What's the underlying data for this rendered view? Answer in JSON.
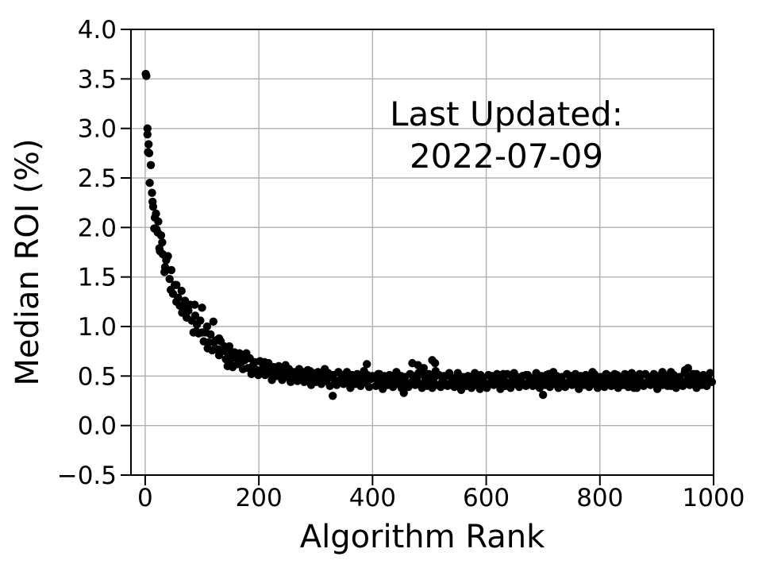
{
  "chart_data": {
    "type": "scatter",
    "title": "",
    "xlabel": "Algorithm Rank",
    "ylabel": "Median ROI (%)",
    "annotation": {
      "line1": "Last Updated:",
      "line2": "2022-07-09"
    },
    "xlim": [
      -25,
      1000
    ],
    "ylim": [
      -0.5,
      4.0
    ],
    "xticks": [
      0,
      200,
      400,
      600,
      800,
      1000
    ],
    "xtick_labels": [
      "0",
      "200",
      "400",
      "600",
      "800",
      "1000"
    ],
    "yticks": [
      4.0,
      3.5,
      3.0,
      2.5,
      2.0,
      1.5,
      1.0,
      0.5,
      0.0,
      -0.5
    ],
    "ytick_labels": [
      "4.0",
      "3.5",
      "3.0",
      "2.5",
      "2.0",
      "1.5",
      "1.0",
      "0.5",
      "0.0",
      "−0.5"
    ],
    "grid": true,
    "grid_color": "#b0b0b0",
    "axis_color": "#000000",
    "marker_color": "#000000",
    "marker_radius_px": 5.2,
    "legend": "none",
    "points": [
      [
        1,
        3.55
      ],
      [
        4,
        2.94
      ],
      [
        7,
        2.75
      ],
      [
        10,
        2.63
      ],
      [
        13,
        2.26
      ],
      [
        16,
        1.99
      ],
      [
        19,
        2.14
      ],
      [
        22,
        1.95
      ],
      [
        25,
        1.79
      ],
      [
        28,
        1.92
      ],
      [
        31,
        1.73
      ],
      [
        34,
        1.55
      ],
      [
        37,
        1.67
      ],
      [
        40,
        1.71
      ],
      [
        43,
        1.48
      ],
      [
        46,
        1.57
      ],
      [
        49,
        1.33
      ],
      [
        52,
        1.42
      ],
      [
        55,
        1.42
      ],
      [
        58,
        1.29
      ],
      [
        61,
        1.21
      ],
      [
        64,
        1.36
      ],
      [
        67,
        1.21
      ],
      [
        70,
        1.26
      ],
      [
        73,
        1.09
      ],
      [
        76,
        1.16
      ],
      [
        79,
        1.22
      ],
      [
        82,
        1.06
      ],
      [
        85,
        0.94
      ],
      [
        88,
        1.11
      ],
      [
        91,
        1.02
      ],
      [
        94,
        0.93
      ],
      [
        97,
        1.06
      ],
      [
        100,
        0.94
      ],
      [
        103,
        0.85
      ],
      [
        106,
        0.94
      ],
      [
        109,
        1.0
      ],
      [
        112,
        0.84
      ],
      [
        115,
        0.92
      ],
      [
        118,
        0.76
      ],
      [
        121,
        0.84
      ],
      [
        124,
        0.86
      ],
      [
        127,
        0.77
      ],
      [
        130,
        0.71
      ],
      [
        133,
        0.85
      ],
      [
        136,
        0.75
      ],
      [
        139,
        0.8
      ],
      [
        142,
        0.67
      ],
      [
        145,
        0.74
      ],
      [
        148,
        0.8
      ],
      [
        151,
        0.68
      ],
      [
        154,
        0.59
      ],
      [
        157,
        0.74
      ],
      [
        160,
        0.68
      ],
      [
        163,
        0.62
      ],
      [
        166,
        0.73
      ],
      [
        169,
        0.64
      ],
      [
        172,
        0.57
      ],
      [
        175,
        0.66
      ],
      [
        178,
        0.73
      ],
      [
        181,
        0.58
      ],
      [
        184,
        0.68
      ],
      [
        187,
        0.52
      ],
      [
        190,
        0.61
      ],
      [
        193,
        0.64
      ],
      [
        196,
        0.56
      ],
      [
        199,
        0.51
      ],
      [
        202,
        0.65
      ],
      [
        205,
        0.56
      ],
      [
        208,
        0.61
      ],
      [
        211,
        0.51
      ],
      [
        214,
        0.57
      ],
      [
        217,
        0.63
      ],
      [
        220,
        0.53
      ],
      [
        223,
        0.46
      ],
      [
        226,
        0.59
      ],
      [
        229,
        0.54
      ],
      [
        232,
        0.5
      ],
      [
        235,
        0.6
      ],
      [
        238,
        0.52
      ],
      [
        241,
        0.46
      ],
      [
        244,
        0.55
      ],
      [
        247,
        0.61
      ],
      [
        250,
        0.49
      ],
      [
        253,
        0.57
      ],
      [
        256,
        0.44
      ],
      [
        259,
        0.52
      ],
      [
        262,
        0.54
      ],
      [
        265,
        0.48
      ],
      [
        268,
        0.45
      ],
      [
        271,
        0.57
      ],
      [
        274,
        0.49
      ],
      [
        277,
        0.54
      ],
      [
        280,
        0.44
      ],
      [
        283,
        0.51
      ],
      [
        286,
        0.56
      ],
      [
        289,
        0.47
      ],
      [
        292,
        0.41
      ],
      [
        295,
        0.53
      ],
      [
        298,
        0.49
      ],
      [
        301,
        0.44
      ],
      [
        304,
        0.54
      ],
      [
        307,
        0.47
      ],
      [
        310,
        0.42
      ],
      [
        313,
        0.5
      ],
      [
        316,
        0.57
      ],
      [
        319,
        0.45
      ],
      [
        322,
        0.53
      ],
      [
        325,
        0.4
      ],
      [
        328,
        0.49
      ],
      [
        331,
        0.51
      ],
      [
        334,
        0.45
      ],
      [
        337,
        0.41
      ],
      [
        340,
        0.54
      ],
      [
        343,
        0.46
      ],
      [
        346,
        0.51
      ],
      [
        349,
        0.42
      ],
      [
        352,
        0.48
      ],
      [
        355,
        0.54
      ],
      [
        358,
        0.45
      ],
      [
        361,
        0.38
      ],
      [
        364,
        0.51
      ],
      [
        367,
        0.47
      ],
      [
        370,
        0.42
      ],
      [
        373,
        0.52
      ],
      [
        376,
        0.46
      ],
      [
        379,
        0.4
      ],
      [
        382,
        0.49
      ],
      [
        385,
        0.55
      ],
      [
        388,
        0.43
      ],
      [
        391,
        0.51
      ],
      [
        394,
        0.39
      ],
      [
        397,
        0.47
      ],
      [
        400,
        0.5
      ],
      [
        403,
        0.49
      ],
      [
        406,
        0.4
      ],
      [
        409,
        0.46
      ],
      [
        412,
        0.52
      ],
      [
        415,
        0.43
      ],
      [
        418,
        0.37
      ],
      [
        421,
        0.5
      ],
      [
        424,
        0.45
      ],
      [
        427,
        0.41
      ],
      [
        430,
        0.51
      ],
      [
        433,
        0.44
      ],
      [
        436,
        0.39
      ],
      [
        439,
        0.47
      ],
      [
        442,
        0.54
      ],
      [
        445,
        0.42
      ],
      [
        448,
        0.5
      ],
      [
        451,
        0.38
      ],
      [
        454,
        0.46
      ],
      [
        457,
        0.49
      ],
      [
        460,
        0.43
      ],
      [
        463,
        0.39
      ],
      [
        466,
        0.52
      ],
      [
        469,
        0.44
      ],
      [
        472,
        0.5
      ],
      [
        475,
        0.41
      ],
      [
        478,
        0.47
      ],
      [
        481,
        0.53
      ],
      [
        484,
        0.42
      ],
      [
        487,
        0.38
      ],
      [
        490,
        0.51
      ],
      [
        493,
        0.46
      ],
      [
        496,
        0.4
      ],
      [
        499,
        0.52
      ],
      [
        502,
        0.45
      ],
      [
        505,
        0.38
      ],
      [
        508,
        0.48
      ],
      [
        511,
        0.55
      ],
      [
        514,
        0.41
      ],
      [
        517,
        0.51
      ],
      [
        520,
        0.39
      ],
      [
        523,
        0.45
      ],
      [
        526,
        0.5
      ],
      [
        529,
        0.42
      ],
      [
        532,
        0.4
      ],
      [
        535,
        0.53
      ],
      [
        538,
        0.43
      ],
      [
        541,
        0.48
      ],
      [
        544,
        0.39
      ],
      [
        547,
        0.45
      ],
      [
        550,
        0.51
      ],
      [
        553,
        0.42
      ],
      [
        556,
        0.36
      ],
      [
        559,
        0.49
      ],
      [
        562,
        0.44
      ],
      [
        565,
        0.4
      ],
      [
        568,
        0.5
      ],
      [
        571,
        0.43
      ],
      [
        574,
        0.38
      ],
      [
        577,
        0.46
      ],
      [
        580,
        0.53
      ],
      [
        583,
        0.41
      ],
      [
        586,
        0.49
      ],
      [
        589,
        0.37
      ],
      [
        592,
        0.45
      ],
      [
        595,
        0.48
      ],
      [
        598,
        0.42
      ],
      [
        601,
        0.38
      ],
      [
        604,
        0.51
      ],
      [
        607,
        0.43
      ],
      [
        610,
        0.5
      ],
      [
        613,
        0.41
      ],
      [
        616,
        0.47
      ],
      [
        619,
        0.52
      ],
      [
        622,
        0.44
      ],
      [
        625,
        0.37
      ],
      [
        628,
        0.49
      ],
      [
        631,
        0.46
      ],
      [
        634,
        0.4
      ],
      [
        637,
        0.52
      ],
      [
        640,
        0.43
      ],
      [
        643,
        0.38
      ],
      [
        646,
        0.48
      ],
      [
        649,
        0.53
      ],
      [
        652,
        0.42
      ],
      [
        655,
        0.49
      ],
      [
        658,
        0.39
      ],
      [
        661,
        0.46
      ],
      [
        664,
        0.5
      ],
      [
        667,
        0.42
      ],
      [
        670,
        0.4
      ],
      [
        673,
        0.51
      ],
      [
        676,
        0.45
      ],
      [
        679,
        0.48
      ],
      [
        682,
        0.4
      ],
      [
        685,
        0.46
      ],
      [
        688,
        0.53
      ],
      [
        691,
        0.42
      ],
      [
        694,
        0.38
      ],
      [
        697,
        0.5
      ],
      [
        700,
        0.44
      ],
      [
        703,
        0.41
      ],
      [
        706,
        0.51
      ],
      [
        709,
        0.44
      ],
      [
        712,
        0.39
      ],
      [
        715,
        0.47
      ],
      [
        718,
        0.54
      ],
      [
        721,
        0.42
      ],
      [
        724,
        0.5
      ],
      [
        727,
        0.38
      ],
      [
        730,
        0.45
      ],
      [
        733,
        0.49
      ],
      [
        736,
        0.43
      ],
      [
        739,
        0.39
      ],
      [
        742,
        0.52
      ],
      [
        745,
        0.44
      ],
      [
        748,
        0.49
      ],
      [
        751,
        0.41
      ],
      [
        754,
        0.46
      ],
      [
        757,
        0.52
      ],
      [
        760,
        0.43
      ],
      [
        763,
        0.37
      ],
      [
        766,
        0.5
      ],
      [
        769,
        0.45
      ],
      [
        772,
        0.41
      ],
      [
        775,
        0.51
      ],
      [
        778,
        0.44
      ],
      [
        781,
        0.39
      ],
      [
        784,
        0.47
      ],
      [
        787,
        0.54
      ],
      [
        790,
        0.42
      ],
      [
        793,
        0.5
      ],
      [
        796,
        0.38
      ],
      [
        799,
        0.46
      ],
      [
        802,
        0.49
      ],
      [
        805,
        0.43
      ],
      [
        808,
        0.39
      ],
      [
        811,
        0.52
      ],
      [
        814,
        0.44
      ],
      [
        817,
        0.5
      ],
      [
        820,
        0.4
      ],
      [
        823,
        0.47
      ],
      [
        826,
        0.52
      ],
      [
        829,
        0.43
      ],
      [
        832,
        0.38
      ],
      [
        835,
        0.49
      ],
      [
        838,
        0.45
      ],
      [
        841,
        0.41
      ],
      [
        844,
        0.52
      ],
      [
        847,
        0.44
      ],
      [
        850,
        0.39
      ],
      [
        853,
        0.47
      ],
      [
        856,
        0.53
      ],
      [
        859,
        0.42
      ],
      [
        862,
        0.5
      ],
      [
        865,
        0.38
      ],
      [
        868,
        0.46
      ],
      [
        871,
        0.49
      ],
      [
        874,
        0.43
      ],
      [
        877,
        0.4
      ],
      [
        880,
        0.52
      ],
      [
        883,
        0.44
      ],
      [
        886,
        0.49
      ],
      [
        889,
        0.41
      ],
      [
        892,
        0.46
      ],
      [
        895,
        0.52
      ],
      [
        898,
        0.43
      ],
      [
        901,
        0.37
      ],
      [
        904,
        0.5
      ],
      [
        907,
        0.45
      ],
      [
        910,
        0.41
      ],
      [
        913,
        0.51
      ],
      [
        916,
        0.44
      ],
      [
        919,
        0.4
      ],
      [
        922,
        0.47
      ],
      [
        925,
        0.54
      ],
      [
        928,
        0.42
      ],
      [
        931,
        0.5
      ],
      [
        934,
        0.38
      ],
      [
        937,
        0.46
      ],
      [
        940,
        0.49
      ],
      [
        943,
        0.44
      ],
      [
        946,
        0.4
      ],
      [
        949,
        0.53
      ],
      [
        952,
        0.45
      ],
      [
        955,
        0.5
      ],
      [
        958,
        0.41
      ],
      [
        961,
        0.47
      ],
      [
        964,
        0.52
      ],
      [
        967,
        0.43
      ],
      [
        970,
        0.38
      ],
      [
        973,
        0.5
      ],
      [
        976,
        0.45
      ],
      [
        979,
        0.41
      ],
      [
        982,
        0.51
      ],
      [
        985,
        0.44
      ],
      [
        988,
        0.4
      ],
      [
        991,
        0.47
      ],
      [
        994,
        0.53
      ],
      [
        997,
        0.44
      ],
      [
        2,
        3.53
      ],
      [
        4,
        3.0
      ],
      [
        5,
        2.76
      ],
      [
        6,
        2.84
      ],
      [
        8,
        2.45
      ],
      [
        12,
        2.35
      ],
      [
        14,
        2.21
      ],
      [
        17,
        2.1
      ],
      [
        20,
        1.98
      ],
      [
        23,
        2.06
      ],
      [
        26,
        1.76
      ],
      [
        30,
        1.85
      ],
      [
        35,
        1.6
      ],
      [
        45,
        1.37
      ],
      [
        55,
        1.25
      ],
      [
        65,
        1.14
      ],
      [
        75,
        1.22
      ],
      [
        87,
        1.22
      ],
      [
        90,
        0.95
      ],
      [
        100,
        1.19
      ],
      [
        110,
        0.78
      ],
      [
        120,
        1.05
      ],
      [
        130,
        0.88
      ],
      [
        145,
        0.6
      ],
      [
        150,
        0.62
      ],
      [
        170,
        0.7
      ],
      [
        190,
        0.55
      ],
      [
        210,
        0.64
      ],
      [
        230,
        0.57
      ],
      [
        250,
        0.55
      ],
      [
        270,
        0.52
      ],
      [
        290,
        0.55
      ],
      [
        310,
        0.52
      ],
      [
        330,
        0.3
      ],
      [
        350,
        0.5
      ],
      [
        370,
        0.48
      ],
      [
        390,
        0.62
      ],
      [
        410,
        0.52
      ],
      [
        430,
        0.47
      ],
      [
        450,
        0.5
      ],
      [
        455,
        0.33
      ],
      [
        470,
        0.63
      ],
      [
        480,
        0.61
      ],
      [
        490,
        0.58
      ],
      [
        505,
        0.66
      ],
      [
        510,
        0.63
      ],
      [
        530,
        0.5
      ],
      [
        550,
        0.53
      ],
      [
        570,
        0.49
      ],
      [
        590,
        0.51
      ],
      [
        610,
        0.47
      ],
      [
        630,
        0.52
      ],
      [
        650,
        0.49
      ],
      [
        670,
        0.51
      ],
      [
        690,
        0.48
      ],
      [
        700,
        0.31
      ],
      [
        710,
        0.52
      ],
      [
        730,
        0.46
      ],
      [
        750,
        0.5
      ],
      [
        770,
        0.47
      ],
      [
        790,
        0.52
      ],
      [
        810,
        0.49
      ],
      [
        830,
        0.51
      ],
      [
        850,
        0.47
      ],
      [
        860,
        0.38
      ],
      [
        870,
        0.52
      ],
      [
        890,
        0.49
      ],
      [
        910,
        0.54
      ],
      [
        925,
        0.4
      ],
      [
        930,
        0.51
      ],
      [
        950,
        0.56
      ],
      [
        955,
        0.58
      ],
      [
        970,
        0.52
      ],
      [
        990,
        0.5
      ]
    ]
  }
}
